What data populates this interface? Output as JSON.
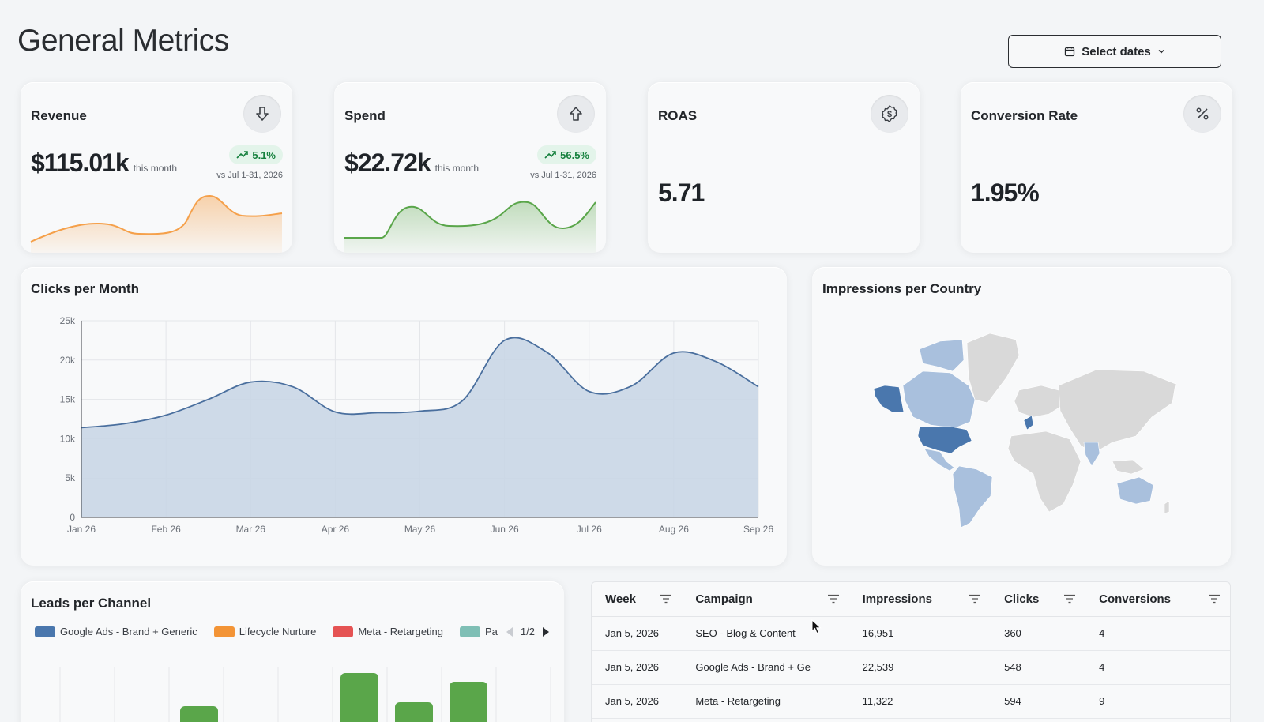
{
  "page": {
    "title": "General Metrics"
  },
  "date_picker": {
    "label": "Select dates",
    "icon": "calendar-icon"
  },
  "kpis": [
    {
      "title": "Revenue",
      "icon": "arrow-down-icon",
      "value": "$115.01k",
      "sub": "this month",
      "trend": "5.1%",
      "vs": "vs Jul 1-31, 2026",
      "color": "#f5a04a"
    },
    {
      "title": "Spend",
      "icon": "arrow-up-icon",
      "value": "$22.72k",
      "sub": "this month",
      "trend": "56.5%",
      "vs": "vs Jul 1-31, 2026",
      "color": "#5aa64a"
    },
    {
      "title": "ROAS",
      "icon": "dollar-badge-icon",
      "value": "5.71"
    },
    {
      "title": "Conversion Rate",
      "icon": "percent-icon",
      "value": "1.95%"
    }
  ],
  "clicks_chart": {
    "title": "Clicks per Month"
  },
  "impressions_map": {
    "title": "Impressions per Country",
    "colors": {
      "high": "#4a77ad",
      "medium": "#a9c0dd",
      "low": "#d9d9d9"
    }
  },
  "leads": {
    "title": "Leads per Channel",
    "legend": [
      {
        "label": "Google Ads - Brand + Generic",
        "color": "#4a77ad"
      },
      {
        "label": "Lifecycle Nurture",
        "color": "#f39436"
      },
      {
        "label": "Meta - Retargeting",
        "color": "#e55353"
      },
      {
        "label": "Pa",
        "color": "#7fbfb5"
      }
    ],
    "page_indicator": "1/2"
  },
  "table": {
    "columns": [
      "Week",
      "Campaign",
      "Impressions",
      "Clicks",
      "Conversions"
    ],
    "rows": [
      [
        "Jan 5, 2026",
        "SEO - Blog & Content",
        "16,951",
        "360",
        "4"
      ],
      [
        "Jan 5, 2026",
        "Google Ads - Brand + Ge",
        "22,539",
        "548",
        "4"
      ],
      [
        "Jan 5, 2026",
        "Meta - Retargeting",
        "11,322",
        "594",
        "9"
      ]
    ]
  },
  "chart_data": [
    {
      "type": "area",
      "title": "Clicks per Month",
      "xlabel": "",
      "ylabel": "",
      "categories": [
        "Jan 26",
        "Feb 26",
        "Mar 26",
        "Apr 26",
        "May 26",
        "Jun 26",
        "Jul 26",
        "Aug 26",
        "Sep 26"
      ],
      "x": [
        0,
        0.5,
        1,
        1.5,
        2,
        2.5,
        3,
        3.5,
        4,
        4.5,
        5,
        5.5,
        6,
        6.5,
        7,
        7.5,
        8
      ],
      "values": [
        11400,
        11900,
        13000,
        15000,
        17200,
        16600,
        13400,
        13300,
        13500,
        14800,
        22500,
        21000,
        16000,
        16700,
        20900,
        19800,
        16600
      ],
      "ylim": [
        0,
        25000
      ],
      "yticks": [
        "0",
        "5k",
        "10k",
        "15k",
        "20k",
        "25k"
      ],
      "color": "#4a6f9e",
      "fill": "#c9d6e6",
      "grid": true
    },
    {
      "type": "bar",
      "title": "Leads per Channel",
      "series": [
        {
          "name": "Google Ads - Brand + Generic",
          "values": []
        },
        {
          "name": "Lifecycle Nurture",
          "values": []
        },
        {
          "name": "Meta - Retargeting",
          "values": []
        }
      ],
      "visible_bars": [
        {
          "color": "#5aa64a",
          "height_rel": 0.05
        },
        {
          "color": "#5aa64a",
          "height_rel": 1.0
        },
        {
          "color": "#5aa64a",
          "height_rel": 0.15
        },
        {
          "color": "#5aa64a",
          "height_rel": 0.75
        }
      ]
    }
  ]
}
